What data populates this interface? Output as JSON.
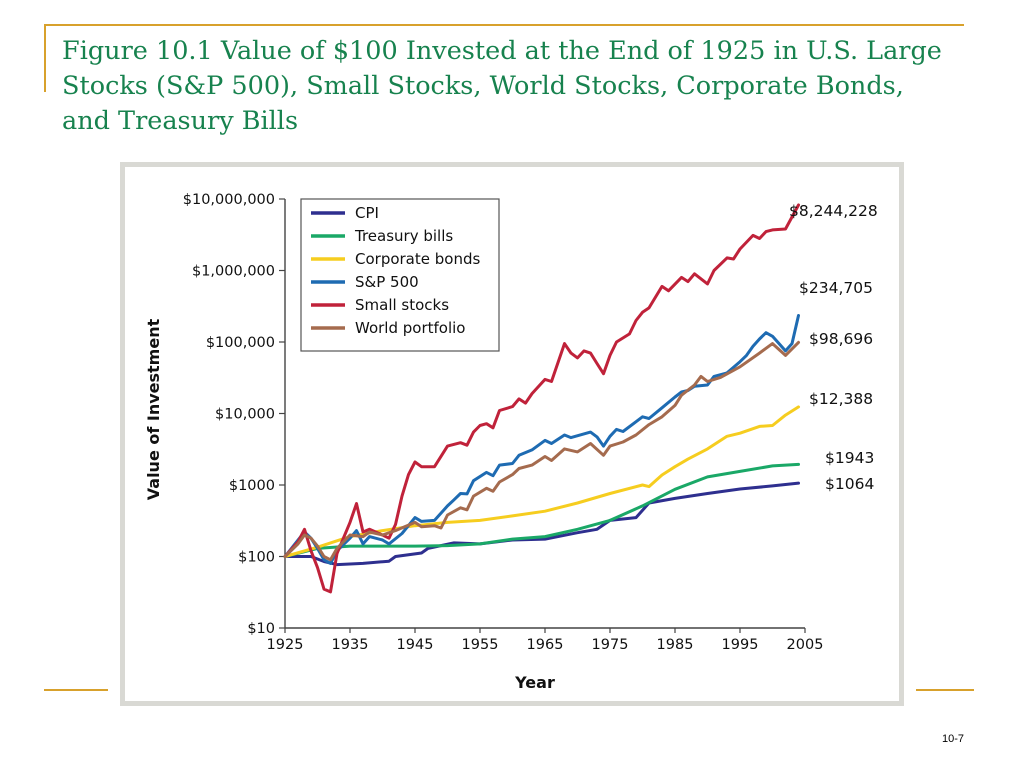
{
  "slide": {
    "title": "Figure 10.1  Value of $100 Invested at the End of 1925 in U.S. Large Stocks (S&P 500), Small Stocks, World Stocks, Corporate Bonds, and Treasury Bills",
    "page_number": "10-7",
    "accent_color": "#d8a12c",
    "title_color": "#17824e"
  },
  "chart_data": {
    "type": "line",
    "xlabel": "Year",
    "ylabel": "Value of Investment",
    "yscale": "log",
    "xlim": [
      1925,
      2005
    ],
    "ylim": [
      10,
      10000000
    ],
    "xticks": [
      1925,
      1935,
      1945,
      1955,
      1965,
      1975,
      1985,
      1995,
      2005
    ],
    "yticks": [
      {
        "value": 10000000,
        "label": "$10,000,000"
      },
      {
        "value": 1000000,
        "label": "$1,000,000"
      },
      {
        "value": 100000,
        "label": "$100,000"
      },
      {
        "value": 10000,
        "label": "$10,000"
      },
      {
        "value": 1000,
        "label": "$1000"
      },
      {
        "value": 100,
        "label": "$100"
      },
      {
        "value": 10,
        "label": "$10"
      }
    ],
    "legend_position": "top-left",
    "series": [
      {
        "name": "CPI",
        "color": "#2e2f8f",
        "end_label": "$1064",
        "points": [
          [
            1925,
            100
          ],
          [
            1927,
            100
          ],
          [
            1929,
            100
          ],
          [
            1931,
            85
          ],
          [
            1933,
            77
          ],
          [
            1937,
            80
          ],
          [
            1941,
            86
          ],
          [
            1942,
            100
          ],
          [
            1946,
            112
          ],
          [
            1947,
            130
          ],
          [
            1951,
            155
          ],
          [
            1955,
            150
          ],
          [
            1960,
            170
          ],
          [
            1965,
            175
          ],
          [
            1970,
            215
          ],
          [
            1973,
            240
          ],
          [
            1975,
            320
          ],
          [
            1979,
            350
          ],
          [
            1981,
            560
          ],
          [
            1985,
            650
          ],
          [
            1990,
            760
          ],
          [
            1995,
            880
          ],
          [
            2000,
            970
          ],
          [
            2004,
            1064
          ]
        ],
        "label_value": 1064
      },
      {
        "name": "Treasury bills",
        "color": "#1aa867",
        "end_label": "$1943",
        "points": [
          [
            1925,
            100
          ],
          [
            1930,
            130
          ],
          [
            1935,
            140
          ],
          [
            1945,
            140
          ],
          [
            1950,
            142
          ],
          [
            1955,
            150
          ],
          [
            1960,
            175
          ],
          [
            1965,
            190
          ],
          [
            1970,
            240
          ],
          [
            1975,
            320
          ],
          [
            1980,
            510
          ],
          [
            1985,
            870
          ],
          [
            1990,
            1300
          ],
          [
            1995,
            1550
          ],
          [
            2000,
            1850
          ],
          [
            2004,
            1943
          ]
        ],
        "label_value": 1943
      },
      {
        "name": "Corporate bonds",
        "color": "#f6cd1f",
        "end_label": "$12,388",
        "points": [
          [
            1925,
            100
          ],
          [
            1930,
            135
          ],
          [
            1935,
            190
          ],
          [
            1940,
            230
          ],
          [
            1945,
            270
          ],
          [
            1950,
            300
          ],
          [
            1955,
            320
          ],
          [
            1960,
            370
          ],
          [
            1965,
            430
          ],
          [
            1970,
            560
          ],
          [
            1975,
            760
          ],
          [
            1980,
            1000
          ],
          [
            1981,
            950
          ],
          [
            1983,
            1380
          ],
          [
            1985,
            1800
          ],
          [
            1987,
            2300
          ],
          [
            1990,
            3200
          ],
          [
            1993,
            4800
          ],
          [
            1995,
            5300
          ],
          [
            1998,
            6600
          ],
          [
            2000,
            6800
          ],
          [
            2002,
            9500
          ],
          [
            2004,
            12388
          ]
        ],
        "label_value": 12388
      },
      {
        "name": "S&P 500",
        "color": "#1e6bb2",
        "end_label": "$234,705",
        "points": [
          [
            1925,
            100
          ],
          [
            1927,
            170
          ],
          [
            1928,
            220
          ],
          [
            1929,
            180
          ],
          [
            1930,
            130
          ],
          [
            1931,
            90
          ],
          [
            1932,
            80
          ],
          [
            1933,
            120
          ],
          [
            1935,
            180
          ],
          [
            1936,
            230
          ],
          [
            1937,
            150
          ],
          [
            1938,
            190
          ],
          [
            1940,
            170
          ],
          [
            1941,
            150
          ],
          [
            1943,
            210
          ],
          [
            1945,
            350
          ],
          [
            1946,
            310
          ],
          [
            1948,
            320
          ],
          [
            1950,
            510
          ],
          [
            1951,
            620
          ],
          [
            1952,
            760
          ],
          [
            1953,
            750
          ],
          [
            1954,
            1150
          ],
          [
            1956,
            1500
          ],
          [
            1957,
            1350
          ],
          [
            1958,
            1900
          ],
          [
            1960,
            2000
          ],
          [
            1961,
            2600
          ],
          [
            1963,
            3100
          ],
          [
            1965,
            4200
          ],
          [
            1966,
            3800
          ],
          [
            1968,
            5000
          ],
          [
            1969,
            4600
          ],
          [
            1972,
            5500
          ],
          [
            1973,
            4700
          ],
          [
            1974,
            3500
          ],
          [
            1975,
            4800
          ],
          [
            1976,
            6000
          ],
          [
            1977,
            5600
          ],
          [
            1980,
            9000
          ],
          [
            1981,
            8500
          ],
          [
            1983,
            12000
          ],
          [
            1985,
            17000
          ],
          [
            1986,
            20000
          ],
          [
            1987,
            21000
          ],
          [
            1988,
            24000
          ],
          [
            1990,
            25000
          ],
          [
            1991,
            33000
          ],
          [
            1993,
            37000
          ],
          [
            1995,
            53000
          ],
          [
            1996,
            65000
          ],
          [
            1997,
            87000
          ],
          [
            1998,
            110000
          ],
          [
            1999,
            135000
          ],
          [
            2000,
            120000
          ],
          [
            2002,
            75000
          ],
          [
            2003,
            95000
          ],
          [
            2004,
            234705
          ]
        ],
        "label_value": 234705
      },
      {
        "name": "Small stocks",
        "color": "#c0223a",
        "end_label": "$8,244,228",
        "points": [
          [
            1925,
            100
          ],
          [
            1927,
            160
          ],
          [
            1928,
            240
          ],
          [
            1929,
            120
          ],
          [
            1930,
            70
          ],
          [
            1931,
            35
          ],
          [
            1932,
            32
          ],
          [
            1933,
            110
          ],
          [
            1935,
            300
          ],
          [
            1936,
            550
          ],
          [
            1937,
            220
          ],
          [
            1938,
            240
          ],
          [
            1940,
            200
          ],
          [
            1941,
            180
          ],
          [
            1942,
            280
          ],
          [
            1943,
            700
          ],
          [
            1944,
            1400
          ],
          [
            1945,
            2100
          ],
          [
            1946,
            1800
          ],
          [
            1948,
            1800
          ],
          [
            1950,
            3500
          ],
          [
            1952,
            3900
          ],
          [
            1953,
            3600
          ],
          [
            1954,
            5500
          ],
          [
            1955,
            6800
          ],
          [
            1956,
            7200
          ],
          [
            1957,
            6300
          ],
          [
            1958,
            11000
          ],
          [
            1960,
            12500
          ],
          [
            1961,
            16000
          ],
          [
            1962,
            14000
          ],
          [
            1963,
            19000
          ],
          [
            1965,
            30000
          ],
          [
            1966,
            28000
          ],
          [
            1968,
            95000
          ],
          [
            1969,
            70000
          ],
          [
            1970,
            60000
          ],
          [
            1971,
            75000
          ],
          [
            1972,
            70000
          ],
          [
            1973,
            50000
          ],
          [
            1974,
            36000
          ],
          [
            1975,
            65000
          ],
          [
            1976,
            100000
          ],
          [
            1978,
            130000
          ],
          [
            1979,
            200000
          ],
          [
            1980,
            260000
          ],
          [
            1981,
            300000
          ],
          [
            1983,
            600000
          ],
          [
            1984,
            520000
          ],
          [
            1986,
            800000
          ],
          [
            1987,
            700000
          ],
          [
            1988,
            900000
          ],
          [
            1990,
            650000
          ],
          [
            1991,
            1000000
          ],
          [
            1993,
            1500000
          ],
          [
            1994,
            1450000
          ],
          [
            1995,
            2000000
          ],
          [
            1997,
            3100000
          ],
          [
            1998,
            2800000
          ],
          [
            1999,
            3500000
          ],
          [
            2000,
            3700000
          ],
          [
            2002,
            3800000
          ],
          [
            2004,
            8244228
          ]
        ],
        "label_value": 8244228
      },
      {
        "name": "World portfolio",
        "color": "#a56b4e",
        "end_label": "$98,696",
        "points": [
          [
            1925,
            100
          ],
          [
            1927,
            150
          ],
          [
            1928,
            200
          ],
          [
            1929,
            180
          ],
          [
            1930,
            140
          ],
          [
            1931,
            100
          ],
          [
            1932,
            90
          ],
          [
            1933,
            130
          ],
          [
            1935,
            200
          ],
          [
            1937,
            190
          ],
          [
            1938,
            220
          ],
          [
            1940,
            200
          ],
          [
            1942,
            230
          ],
          [
            1945,
            300
          ],
          [
            1946,
            260
          ],
          [
            1948,
            270
          ],
          [
            1949,
            250
          ],
          [
            1950,
            380
          ],
          [
            1952,
            480
          ],
          [
            1953,
            450
          ],
          [
            1954,
            700
          ],
          [
            1956,
            900
          ],
          [
            1957,
            820
          ],
          [
            1958,
            1100
          ],
          [
            1960,
            1400
          ],
          [
            1961,
            1700
          ],
          [
            1963,
            1900
          ],
          [
            1965,
            2500
          ],
          [
            1966,
            2200
          ],
          [
            1968,
            3200
          ],
          [
            1970,
            2900
          ],
          [
            1972,
            3800
          ],
          [
            1974,
            2600
          ],
          [
            1975,
            3500
          ],
          [
            1977,
            4000
          ],
          [
            1979,
            5000
          ],
          [
            1981,
            7000
          ],
          [
            1983,
            9000
          ],
          [
            1985,
            13000
          ],
          [
            1986,
            18000
          ],
          [
            1988,
            25000
          ],
          [
            1989,
            33000
          ],
          [
            1990,
            28000
          ],
          [
            1992,
            32000
          ],
          [
            1995,
            45000
          ],
          [
            1998,
            70000
          ],
          [
            2000,
            95000
          ],
          [
            2002,
            65000
          ],
          [
            2004,
            98696
          ]
        ],
        "label_value": 98696
      }
    ]
  }
}
